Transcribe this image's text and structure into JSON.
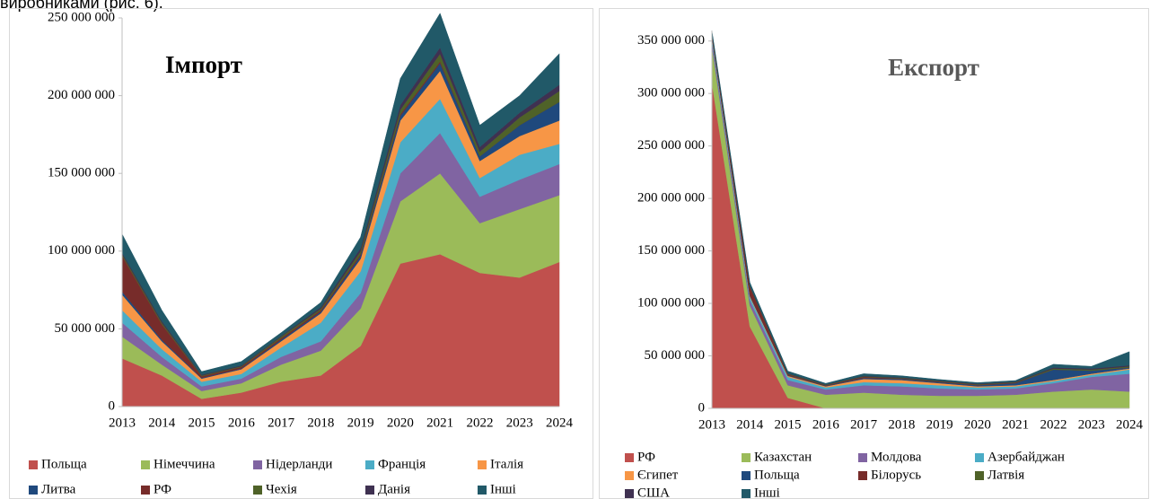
{
  "caption": "виробниками (рис. 6).",
  "chart_data": [
    {
      "type": "area",
      "stacked": true,
      "title": "Імпорт",
      "categories": [
        "2013",
        "2014",
        "2015",
        "2016",
        "2017",
        "2018",
        "2019",
        "2020",
        "2021",
        "2022",
        "2023",
        "2024"
      ],
      "ylim": [
        0,
        250000000
      ],
      "yticks": [
        0,
        {
          "value": 50000000,
          "label": "50 000 000"
        },
        {
          "value": 100000000,
          "label": "100 000 000"
        },
        {
          "value": 150000000,
          "label": "150 000 000"
        },
        {
          "value": 200000000,
          "label": "200 000 000"
        },
        {
          "value": 250000000,
          "label": "250 000 000"
        }
      ],
      "grid": false,
      "legend": "bottom",
      "series": [
        {
          "name": "Польща",
          "color": "#c0504d",
          "values": [
            31000000,
            20000000,
            5000000,
            9000000,
            16000000,
            20000000,
            39000000,
            92000000,
            98000000,
            86000000,
            83000000,
            93000000
          ]
        },
        {
          "name": "Німеччина",
          "color": "#9bbb59",
          "values": [
            14000000,
            7000000,
            5000000,
            6000000,
            11000000,
            16000000,
            24000000,
            40000000,
            52000000,
            32000000,
            44000000,
            43000000
          ]
        },
        {
          "name": "Нідерланди",
          "color": "#8064a2",
          "values": [
            9000000,
            5000000,
            3000000,
            3000000,
            5000000,
            6000000,
            10000000,
            18000000,
            26000000,
            17000000,
            19000000,
            20000000
          ]
        },
        {
          "name": "Франція",
          "color": "#4bacc6",
          "values": [
            8000000,
            5000000,
            3000000,
            3000000,
            6000000,
            12000000,
            14000000,
            20000000,
            22000000,
            12000000,
            16000000,
            13000000
          ]
        },
        {
          "name": "Італія",
          "color": "#f79646",
          "values": [
            10000000,
            5000000,
            2000000,
            3000000,
            4000000,
            6000000,
            8000000,
            14000000,
            18000000,
            11000000,
            12000000,
            15000000
          ]
        },
        {
          "name": "Литва",
          "color": "#1f497d",
          "values": [
            2000000,
            1000000,
            500000,
            500000,
            1000000,
            1000000,
            2000000,
            3000000,
            5000000,
            3000000,
            7000000,
            12000000
          ]
        },
        {
          "name": "РФ",
          "color": "#772c2a",
          "values": [
            23000000,
            10000000,
            1000000,
            1000000,
            1000000,
            1000000,
            1000000,
            1000000,
            1000000,
            0,
            0,
            0
          ]
        },
        {
          "name": "Чехія",
          "color": "#4f6228",
          "values": [
            1000000,
            1000000,
            500000,
            500000,
            1000000,
            1000000,
            2000000,
            3000000,
            5000000,
            3000000,
            5000000,
            7000000
          ]
        },
        {
          "name": "Данія",
          "color": "#3f3151",
          "values": [
            1000000,
            1000000,
            500000,
            500000,
            500000,
            1000000,
            2000000,
            3000000,
            4000000,
            3000000,
            3000000,
            4000000
          ]
        },
        {
          "name": "Інші",
          "color": "#215968",
          "values": [
            12000000,
            7000000,
            2000000,
            2500000,
            2000000,
            3000000,
            7000000,
            17000000,
            22000000,
            14000000,
            11000000,
            20000000
          ]
        }
      ]
    },
    {
      "type": "area",
      "stacked": true,
      "title": "Експорт",
      "categories": [
        "2013",
        "2014",
        "2015",
        "2016",
        "2017",
        "2018",
        "2019",
        "2020",
        "2021",
        "2022",
        "2023",
        "2024"
      ],
      "ylim": [
        0,
        360000000
      ],
      "yticks": [
        0,
        {
          "value": 50000000,
          "label": "50 000 000"
        },
        {
          "value": 100000000,
          "label": "100 000 000"
        },
        {
          "value": 150000000,
          "label": "150 000 000"
        },
        {
          "value": 200000000,
          "label": "200 000 000"
        },
        {
          "value": 250000000,
          "label": "250 000 000"
        },
        {
          "value": 300000000,
          "label": "300 000 000"
        },
        {
          "value": 350000000,
          "label": "350 000 000"
        }
      ],
      "grid": false,
      "legend": "bottom",
      "series": [
        {
          "name": "РФ",
          "color": "#c0504d",
          "values": [
            310000000,
            78000000,
            10000000,
            0,
            0,
            0,
            0,
            0,
            0,
            0,
            0,
            0
          ]
        },
        {
          "name": "Казахстан",
          "color": "#9bbb59",
          "values": [
            35000000,
            20000000,
            12000000,
            13000000,
            15000000,
            13000000,
            12000000,
            12000000,
            13000000,
            16000000,
            18000000,
            16000000
          ]
        },
        {
          "name": "Молдова",
          "color": "#8064a2",
          "values": [
            5000000,
            5000000,
            5000000,
            5000000,
            7000000,
            8000000,
            7000000,
            6000000,
            6000000,
            8000000,
            12000000,
            17000000
          ]
        },
        {
          "name": "Азербайджан",
          "color": "#4bacc6",
          "values": [
            3000000,
            3000000,
            3000000,
            2000000,
            3000000,
            3000000,
            3000000,
            2000000,
            2000000,
            2000000,
            2000000,
            4000000
          ]
        },
        {
          "name": "Єгипет",
          "color": "#f79646",
          "values": [
            1000000,
            1000000,
            1000000,
            1000000,
            3000000,
            3000000,
            2000000,
            1000000,
            1000000,
            1000000,
            1000000,
            1000000
          ]
        },
        {
          "name": "Польща",
          "color": "#1f497d",
          "values": [
            1000000,
            1000000,
            500000,
            500000,
            1000000,
            1000000,
            1000000,
            1000000,
            2000000,
            10000000,
            3000000,
            1000000
          ]
        },
        {
          "name": "Білорусь",
          "color": "#772c2a",
          "values": [
            2000000,
            8000000,
            1000000,
            500000,
            1000000,
            500000,
            500000,
            500000,
            500000,
            0,
            0,
            0
          ]
        },
        {
          "name": "Латвія",
          "color": "#4f6228",
          "values": [
            500000,
            500000,
            500000,
            500000,
            500000,
            500000,
            500000,
            500000,
            500000,
            1000000,
            1000000,
            1000000
          ]
        },
        {
          "name": "США",
          "color": "#3f3151",
          "values": [
            500000,
            500000,
            500000,
            300000,
            500000,
            500000,
            500000,
            500000,
            500000,
            1000000,
            1000000,
            1000000
          ]
        },
        {
          "name": "Інші",
          "color": "#215968",
          "values": [
            2000000,
            3000000,
            2000000,
            1000000,
            2000000,
            1500000,
            1000000,
            1000000,
            1000000,
            3000000,
            2000000,
            13000000
          ]
        }
      ]
    }
  ]
}
